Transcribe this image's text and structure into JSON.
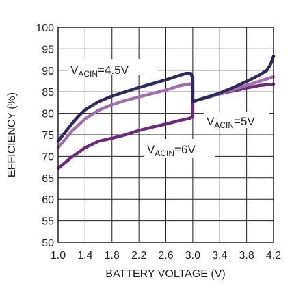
{
  "chart_data": {
    "type": "line",
    "xlabel": "BATTERY VOLTAGE (V)",
    "ylabel": "EFFICIENCY (%)",
    "xlim": [
      1.0,
      4.2
    ],
    "ylim": [
      50,
      100
    ],
    "x_ticks": [
      "1.0",
      "1.4",
      "1.8",
      "2.2",
      "2.6",
      "3.0",
      "3.4",
      "3.8",
      "4.2"
    ],
    "y_ticks": [
      "50",
      "55",
      "60",
      "65",
      "70",
      "75",
      "80",
      "85",
      "90",
      "95",
      "100"
    ],
    "grid": true,
    "series": [
      {
        "name": "VACIN=4.5V",
        "label": {
          "base": "V",
          "sub": "ACIN",
          "suffix": "=4.5V"
        },
        "color": "#2e2a5e",
        "x": [
          1.0,
          1.1,
          1.2,
          1.3,
          1.4,
          1.6,
          1.8,
          2.0,
          2.2,
          2.4,
          2.6,
          2.8,
          2.9,
          2.97,
          3.0,
          3.0,
          3.2,
          3.4,
          3.6,
          3.8,
          3.9,
          4.0,
          4.1,
          4.15,
          4.2
        ],
        "values": [
          73.5,
          75.5,
          77.5,
          79.3,
          80.8,
          82.7,
          84.0,
          85.0,
          86.0,
          86.9,
          87.8,
          88.8,
          89.3,
          89.3,
          88.3,
          82.8,
          83.7,
          84.7,
          86.0,
          87.4,
          88.2,
          89.0,
          90.0,
          91.2,
          93.3
        ]
      },
      {
        "name": "VACIN=5V",
        "label": {
          "base": "V",
          "sub": "ACIN",
          "suffix": "=5V"
        },
        "color": "#a070ad",
        "x": [
          1.0,
          1.2,
          1.4,
          1.6,
          1.8,
          2.0,
          2.2,
          2.4,
          2.6,
          2.8,
          2.93,
          3.0,
          3.0,
          3.2,
          3.4,
          3.6,
          3.8,
          4.0,
          4.2
        ],
        "values": [
          72.0,
          75.8,
          78.7,
          80.7,
          82.0,
          83.0,
          83.8,
          84.6,
          85.4,
          86.4,
          86.8,
          86.8,
          82.8,
          83.6,
          84.5,
          85.5,
          86.5,
          87.5,
          88.5
        ]
      },
      {
        "name": "VACIN=6V",
        "label": {
          "base": "V",
          "sub": "ACIN",
          "suffix": "=6V"
        },
        "color": "#6a2c79",
        "x": [
          1.0,
          1.2,
          1.4,
          1.6,
          1.8,
          2.0,
          2.2,
          2.4,
          2.6,
          2.8,
          2.95,
          3.0,
          3.0,
          3.2,
          3.4,
          3.6,
          3.8,
          4.0,
          4.2
        ],
        "values": [
          67.2,
          69.8,
          72.0,
          73.5,
          74.2,
          75.0,
          76.0,
          76.8,
          77.5,
          78.3,
          78.8,
          79.2,
          82.7,
          83.7,
          84.5,
          85.2,
          85.9,
          86.5,
          86.8
        ]
      }
    ]
  }
}
